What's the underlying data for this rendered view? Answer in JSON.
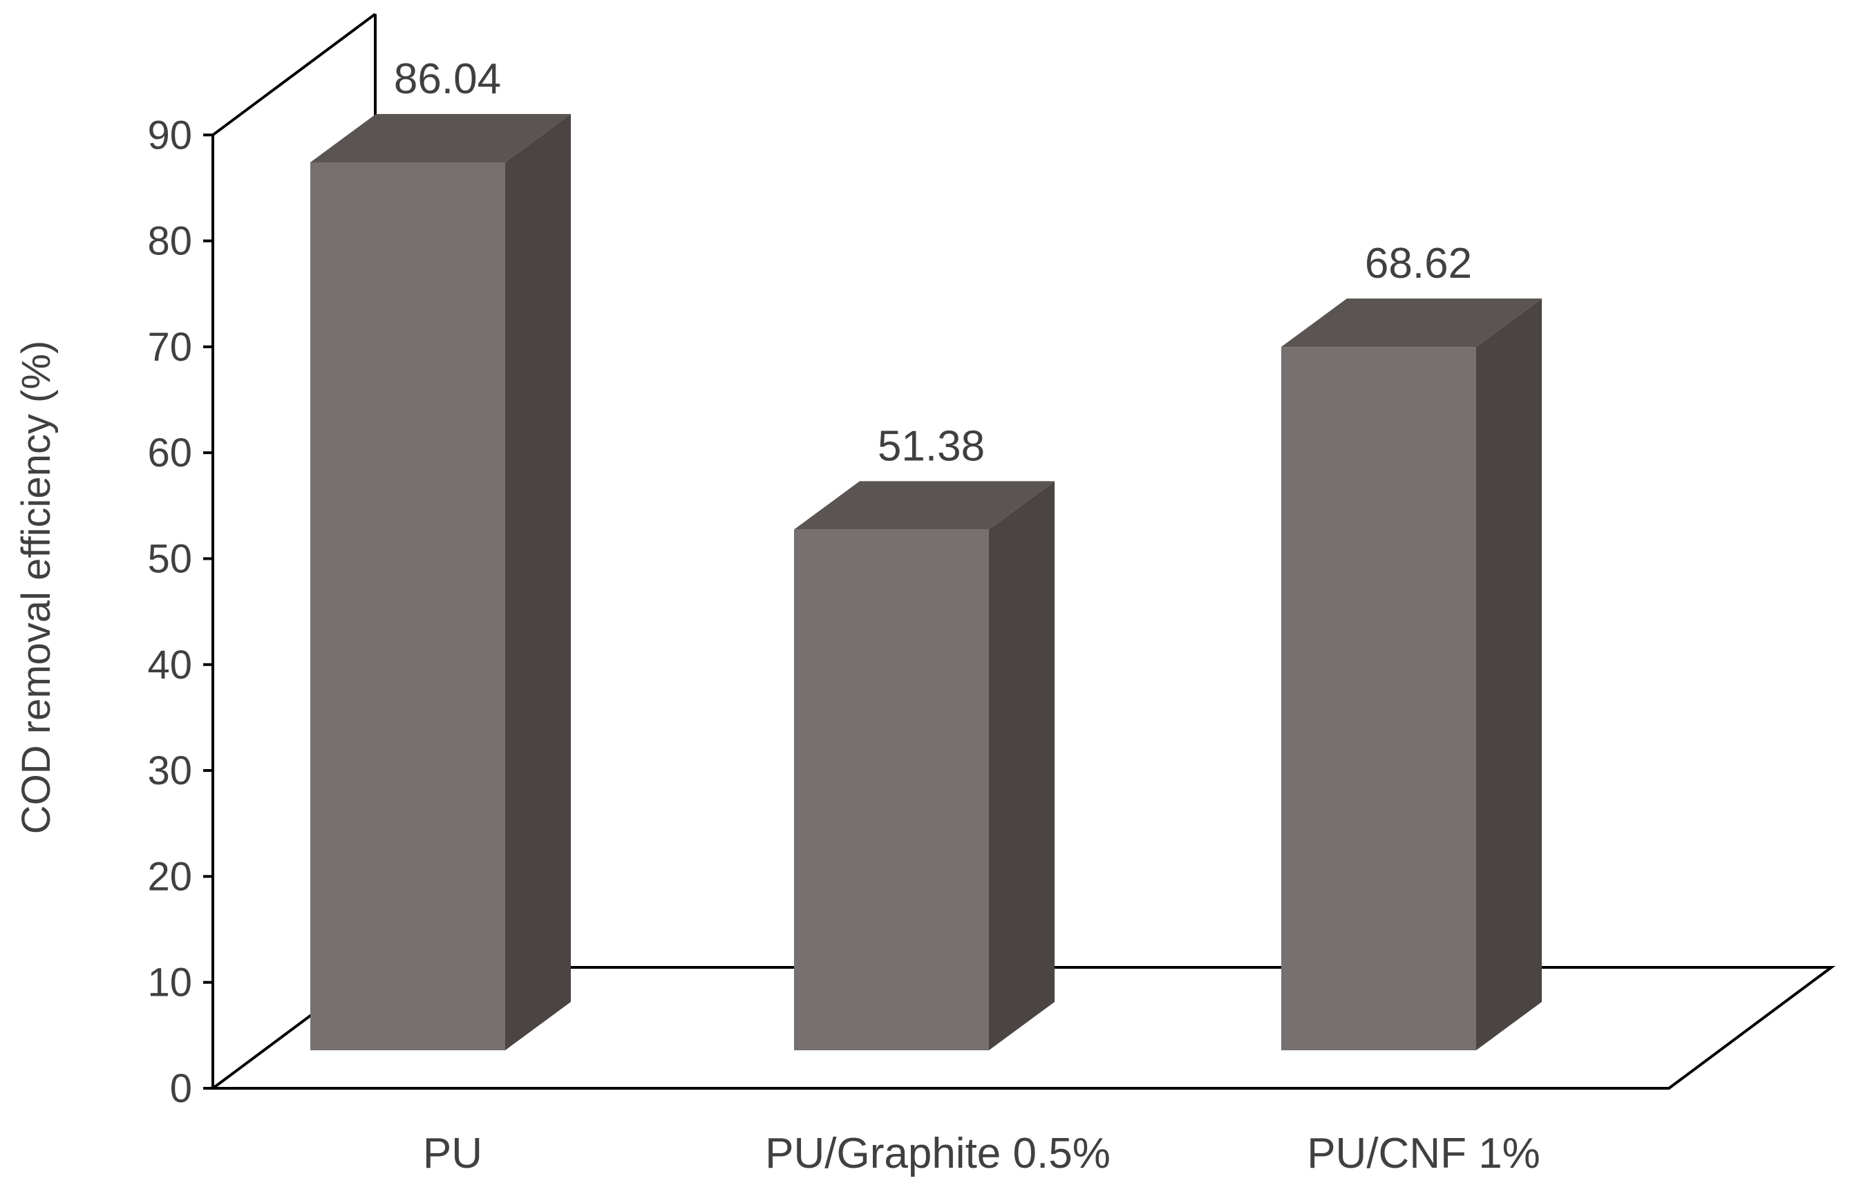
{
  "chart_data": {
    "type": "bar",
    "categories": [
      "PU",
      "PU/Graphite 0.5%",
      "PU/CNF 1%"
    ],
    "values": [
      86.04,
      51.38,
      68.62
    ],
    "value_labels": [
      "86.04",
      "51.38",
      "68.62"
    ],
    "title": "",
    "xlabel": "",
    "ylabel": "COD removal efficiency (%)",
    "ylim": [
      0,
      90
    ],
    "yticks": [
      "0",
      "10",
      "20",
      "30",
      "40",
      "50",
      "60",
      "70",
      "80",
      "90"
    ],
    "grid": false,
    "legend": "none",
    "colors": {
      "bar_front": "#767070",
      "bar_top": "#5a5553",
      "bar_side": "#4a4442",
      "axis": "#000000",
      "text": "#404040"
    }
  }
}
